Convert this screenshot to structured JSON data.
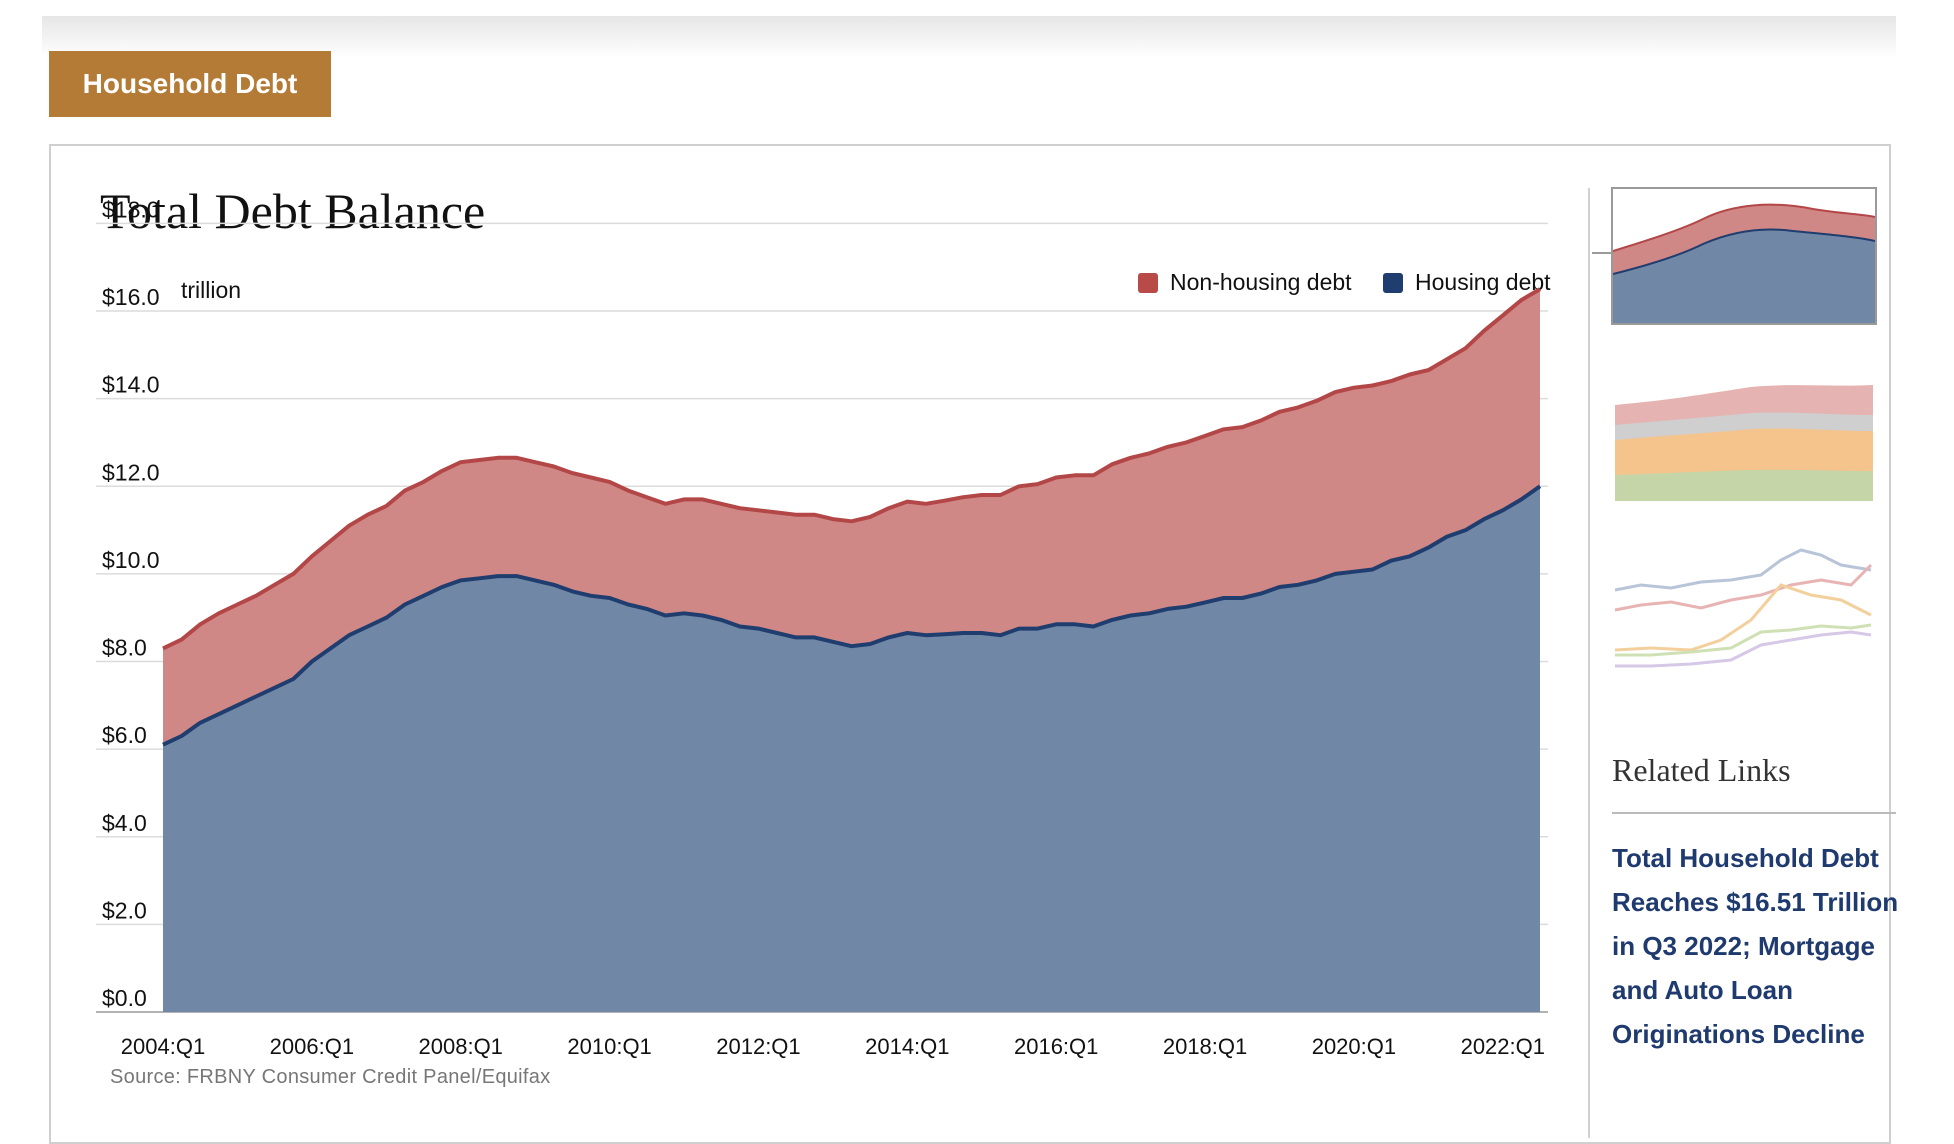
{
  "section_tab": "Household Debt",
  "chart_data": {
    "type": "area",
    "title": "Total Debt Balance",
    "unit_label": "trillion",
    "source": "Source: FRBNY Consumer Credit Panel/Equifax",
    "ylim": [
      0,
      18
    ],
    "y_ticks": [
      "$0.0",
      "$2.0",
      "$4.0",
      "$6.0",
      "$8.0",
      "$10.0",
      "$12.0",
      "$14.0",
      "$16.0",
      "$18.0"
    ],
    "x_tick_labels": [
      "2004:Q1",
      "2006:Q1",
      "2008:Q1",
      "2010:Q1",
      "2012:Q1",
      "2014:Q1",
      "2016:Q1",
      "2018:Q1",
      "2020:Q1",
      "2022:Q1"
    ],
    "x_start": "2004:Q1",
    "x_end": "2022:Q3",
    "legend_position": "top-right",
    "grid": true,
    "series": [
      {
        "name": "Housing debt",
        "color": "#1f3d6e",
        "fill": "#7087a5",
        "values": [
          6.1,
          6.3,
          6.6,
          6.8,
          7.0,
          7.2,
          7.4,
          7.6,
          8.0,
          8.3,
          8.6,
          8.8,
          9.0,
          9.3,
          9.5,
          9.7,
          9.85,
          9.9,
          9.95,
          9.95,
          9.85,
          9.75,
          9.6,
          9.5,
          9.45,
          9.3,
          9.2,
          9.05,
          9.1,
          9.05,
          8.95,
          8.8,
          8.75,
          8.65,
          8.55,
          8.55,
          8.45,
          8.35,
          8.4,
          8.55,
          8.65,
          8.6,
          8.62,
          8.65,
          8.65,
          8.6,
          8.75,
          8.75,
          8.85,
          8.85,
          8.8,
          8.95,
          9.05,
          9.1,
          9.2,
          9.25,
          9.35,
          9.45,
          9.45,
          9.55,
          9.7,
          9.75,
          9.85,
          10.0,
          10.05,
          10.1,
          10.3,
          10.4,
          10.6,
          10.85,
          11.0,
          11.25,
          11.45,
          11.7,
          12.0
        ]
      },
      {
        "name": "Non-housing debt",
        "color": "#b34747",
        "fill": "#d08886",
        "values": [
          2.2,
          2.2,
          2.25,
          2.3,
          2.3,
          2.3,
          2.35,
          2.4,
          2.4,
          2.45,
          2.5,
          2.55,
          2.55,
          2.6,
          2.6,
          2.65,
          2.7,
          2.7,
          2.7,
          2.7,
          2.7,
          2.7,
          2.7,
          2.7,
          2.65,
          2.6,
          2.55,
          2.55,
          2.6,
          2.65,
          2.65,
          2.7,
          2.7,
          2.75,
          2.8,
          2.8,
          2.8,
          2.85,
          2.9,
          2.95,
          3.0,
          3.0,
          3.05,
          3.1,
          3.15,
          3.2,
          3.25,
          3.3,
          3.35,
          3.4,
          3.45,
          3.55,
          3.6,
          3.65,
          3.7,
          3.75,
          3.8,
          3.85,
          3.9,
          3.95,
          4.0,
          4.05,
          4.1,
          4.15,
          4.2,
          4.2,
          4.1,
          4.15,
          4.05,
          4.05,
          4.15,
          4.3,
          4.45,
          4.55,
          4.5
        ]
      }
    ]
  },
  "sidebar": {
    "related_title": "Related Links",
    "related_link": "Total Household Debt Reaches $16.51 Trillion in Q3 2022; Mortgage and Auto Loan Originations Decline"
  }
}
